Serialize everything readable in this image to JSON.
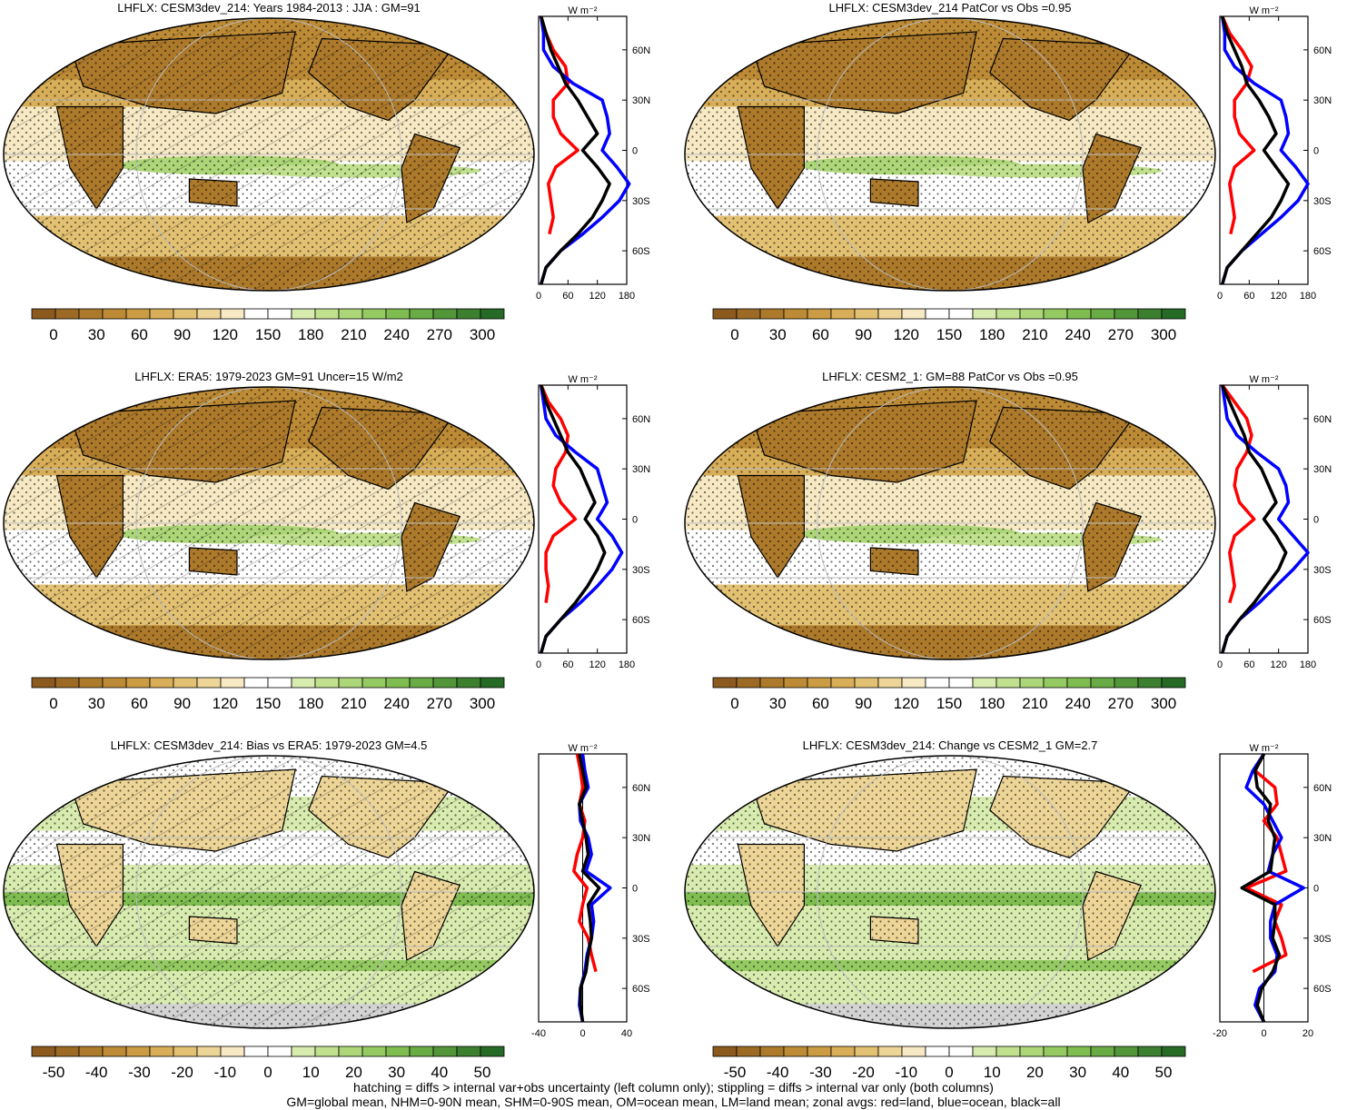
{
  "footer": {
    "line1": "hatching = diffs > internal var+obs uncertainty (left column only); stippling = diffs > internal var only (both columns)",
    "line2": "GM=global mean, NHM=0-90N mean, SHM=0-90S mean, OM=ocean mean, LM=land mean; zonal avgs: red=land, blue=ocean, black=all"
  },
  "colors": {
    "land_line": "#ff0000",
    "ocean_line": "#0000ff",
    "all_line": "#000000",
    "missing": "#d3d3d3",
    "scale": [
      "#8c5a1e",
      "#9c6a24",
      "#ad7a2c",
      "#bd8b36",
      "#cc9c44",
      "#d8ae58",
      "#e3c173",
      "#edd597",
      "#f6e9c3",
      "#ffffff",
      "#ffffff",
      "#d9ecb0",
      "#c2e18f",
      "#acd677",
      "#95ca62",
      "#7fbd51",
      "#69ab44",
      "#529639",
      "#3c802f",
      "#256a25"
    ]
  },
  "panels": [
    {
      "title": "LHFLX: CESM3dev_214: Years 1984-2013 : JJA : GM=91",
      "colorbar_ticks": [
        "0",
        "30",
        "60",
        "90",
        "120",
        "150",
        "180",
        "210",
        "240",
        "270",
        "300"
      ],
      "map": {
        "type": "abs",
        "hatch": true
      },
      "chart_data": {
        "type": "line",
        "unit": "W m⁻²",
        "xlim": [
          0,
          180
        ],
        "xticks": [
          "0",
          "60",
          "120",
          "180"
        ],
        "yticks": [
          "60N",
          "30N",
          "0",
          "30S",
          "60S"
        ],
        "lat": [
          80,
          70,
          60,
          50,
          40,
          30,
          20,
          10,
          0,
          -10,
          -20,
          -30,
          -40,
          -50,
          -60,
          -70,
          -80
        ],
        "series": [
          {
            "name": "land",
            "values": [
              5,
              15,
              30,
              55,
              60,
              30,
              30,
              45,
              80,
              35,
              20,
              25,
              30,
              22,
              null,
              null,
              null
            ]
          },
          {
            "name": "ocean",
            "values": [
              5,
              10,
              10,
              30,
              70,
              130,
              140,
              145,
              130,
              160,
              185,
              165,
              130,
              90,
              45,
              15,
              5
            ]
          },
          {
            "name": "all",
            "values": [
              5,
              15,
              25,
              40,
              55,
              80,
              100,
              120,
              90,
              120,
              145,
              130,
              110,
              80,
              45,
              15,
              5
            ]
          }
        ]
      }
    },
    {
      "title": "LHFLX: CESM3dev_214 PatCor vs Obs =0.95",
      "colorbar_ticks": [
        "0",
        "30",
        "60",
        "90",
        "120",
        "150",
        "180",
        "210",
        "240",
        "270",
        "300"
      ],
      "map": {
        "type": "abs",
        "hatch": false
      },
      "chart_data": {
        "type": "line",
        "unit": "W m⁻²",
        "xlim": [
          0,
          180
        ],
        "xticks": [
          "0",
          "60",
          "120",
          "180"
        ],
        "yticks": [
          "60N",
          "30N",
          "0",
          "30S",
          "60S"
        ],
        "lat": [
          80,
          70,
          60,
          50,
          40,
          30,
          20,
          10,
          0,
          -10,
          -20,
          -30,
          -40,
          -50,
          -60,
          -70,
          -80
        ],
        "series": [
          {
            "name": "land",
            "values": [
              5,
              20,
              45,
              65,
              55,
              30,
              30,
              40,
              70,
              30,
              20,
              25,
              30,
              22,
              null,
              null,
              null
            ]
          },
          {
            "name": "ocean",
            "values": [
              5,
              10,
              10,
              30,
              70,
              125,
              135,
              140,
              125,
              155,
              180,
              160,
              125,
              85,
              45,
              15,
              5
            ]
          },
          {
            "name": "all",
            "values": [
              5,
              15,
              30,
              45,
              55,
              80,
              100,
              115,
              90,
              115,
              140,
              125,
              105,
              75,
              45,
              15,
              5
            ]
          }
        ]
      }
    },
    {
      "title": "LHFLX: ERA5: 1979-2023 GM=91 Uncer=15 W/m2",
      "colorbar_ticks": [
        "0",
        "30",
        "60",
        "90",
        "120",
        "150",
        "180",
        "210",
        "240",
        "270",
        "300"
      ],
      "map": {
        "type": "abs",
        "hatch": true
      },
      "chart_data": {
        "type": "line",
        "unit": "W m⁻²",
        "xlim": [
          0,
          180
        ],
        "xticks": [
          "0",
          "60",
          "120",
          "180"
        ],
        "yticks": [
          "60N",
          "30N",
          "0",
          "30S",
          "60S"
        ],
        "lat": [
          80,
          70,
          60,
          50,
          40,
          30,
          20,
          10,
          0,
          -10,
          -20,
          -30,
          -40,
          -50,
          -60,
          -70,
          -80
        ],
        "series": [
          {
            "name": "land",
            "values": [
              5,
              20,
              45,
              60,
              55,
              35,
              30,
              45,
              75,
              30,
              15,
              15,
              20,
              15,
              null,
              null,
              null
            ]
          },
          {
            "name": "ocean",
            "values": [
              5,
              10,
              15,
              35,
              75,
              120,
              130,
              140,
              120,
              150,
              170,
              150,
              120,
              85,
              45,
              15,
              5
            ]
          },
          {
            "name": "all",
            "values": [
              5,
              15,
              30,
              45,
              60,
              85,
              100,
              115,
              95,
              120,
              135,
              120,
              100,
              75,
              45,
              15,
              5
            ]
          }
        ]
      }
    },
    {
      "title": "LHFLX: CESM2_1: GM=88 PatCor vs Obs =0.95",
      "colorbar_ticks": [
        "0",
        "30",
        "60",
        "90",
        "120",
        "150",
        "180",
        "210",
        "240",
        "270",
        "300"
      ],
      "map": {
        "type": "abs",
        "hatch": false
      },
      "chart_data": {
        "type": "line",
        "unit": "W m⁻²",
        "xlim": [
          0,
          180
        ],
        "xticks": [
          "0",
          "60",
          "120",
          "180"
        ],
        "yticks": [
          "60N",
          "30N",
          "0",
          "30S",
          "60S"
        ],
        "lat": [
          80,
          70,
          60,
          50,
          40,
          30,
          20,
          10,
          0,
          -10,
          -20,
          -30,
          -40,
          -50,
          -60,
          -70,
          -80
        ],
        "series": [
          {
            "name": "land",
            "values": [
              5,
              30,
              55,
              65,
              55,
              35,
              30,
              40,
              70,
              30,
              20,
              25,
              30,
              20,
              null,
              null,
              null
            ]
          },
          {
            "name": "ocean",
            "values": [
              5,
              10,
              15,
              35,
              75,
              120,
              135,
              140,
              120,
              150,
              180,
              150,
              115,
              80,
              40,
              15,
              5
            ]
          },
          {
            "name": "all",
            "values": [
              5,
              20,
              35,
              50,
              60,
              85,
              100,
              115,
              90,
              115,
              135,
              120,
              95,
              70,
              40,
              15,
              5
            ]
          }
        ]
      }
    },
    {
      "title": "LHFLX: CESM3dev_214: Bias vs ERA5: 1979-2023 GM=4.5",
      "colorbar_ticks": [
        "-50",
        "-40",
        "-30",
        "-20",
        "-10",
        "0",
        "10",
        "20",
        "30",
        "40",
        "50"
      ],
      "map": {
        "type": "diff",
        "hatch": true
      },
      "chart_data": {
        "type": "line",
        "unit": "W m⁻²",
        "xlim": [
          -40,
          40
        ],
        "xticks": [
          "-40",
          "0",
          "40"
        ],
        "yticks": [
          "60N",
          "30N",
          "0",
          "30S",
          "60S"
        ],
        "lat": [
          80,
          70,
          60,
          50,
          40,
          30,
          20,
          10,
          0,
          -10,
          -20,
          -30,
          -40,
          -50,
          -60,
          -70,
          -80
        ],
        "series": [
          {
            "name": "land",
            "values": [
              -5,
              -2,
              0,
              -3,
              2,
              0,
              -5,
              -8,
              4,
              0,
              -3,
              5,
              8,
              12,
              null,
              null,
              null
            ]
          },
          {
            "name": "ocean",
            "values": [
              0,
              2,
              5,
              -3,
              -2,
              5,
              8,
              3,
              25,
              8,
              10,
              8,
              4,
              2,
              -2,
              -3,
              0
            ]
          },
          {
            "name": "all",
            "values": [
              -3,
              0,
              3,
              -3,
              0,
              3,
              5,
              0,
              15,
              5,
              7,
              8,
              5,
              3,
              -2,
              -2,
              0
            ]
          }
        ]
      }
    },
    {
      "title": "LHFLX: CESM3dev_214: Change vs CESM2_1 GM=2.7",
      "colorbar_ticks": [
        "-50",
        "-40",
        "-30",
        "-20",
        "-10",
        "0",
        "10",
        "20",
        "30",
        "40",
        "50"
      ],
      "map": {
        "type": "diff",
        "hatch": false
      },
      "chart_data": {
        "type": "line",
        "unit": "W m⁻²",
        "xlim": [
          -20,
          20
        ],
        "xticks": [
          "-20",
          "0",
          "20"
        ],
        "yticks": [
          "60N",
          "30N",
          "0",
          "30S",
          "60S"
        ],
        "lat": [
          80,
          70,
          60,
          50,
          40,
          30,
          20,
          10,
          0,
          -10,
          -20,
          -30,
          -40,
          -50,
          -60,
          -70,
          -80
        ],
        "series": [
          {
            "name": "land",
            "values": [
              0,
              -4,
              5,
              6,
              0,
              6,
              8,
              10,
              -8,
              8,
              5,
              8,
              10,
              -5,
              null,
              null,
              null
            ]
          },
          {
            "name": "ocean",
            "values": [
              0,
              -5,
              -8,
              0,
              4,
              8,
              4,
              2,
              18,
              5,
              3,
              3,
              6,
              5,
              -2,
              -4,
              0
            ]
          },
          {
            "name": "all",
            "values": [
              0,
              -4,
              -3,
              3,
              2,
              5,
              4,
              3,
              -10,
              5,
              5,
              4,
              7,
              4,
              -1,
              -3,
              0
            ]
          }
        ]
      }
    }
  ]
}
